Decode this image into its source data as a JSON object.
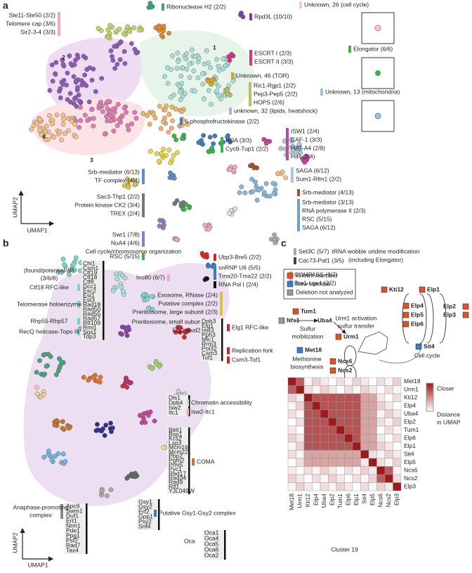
{
  "panel_a": {
    "label": "a",
    "x_axis": "UMAP1",
    "y_axis": "UMAP2",
    "clusters": [
      "1",
      "2",
      "3",
      "4"
    ],
    "groups": [
      {
        "lines": [
          "Ste11-Ste50 (2/2)",
          "Telomere cap (3/6)",
          "Sir2-3-4 (3/3)"
        ],
        "color": "#f2a7c3"
      },
      {
        "lines": [
          "Ribonuclease H2 (2/2)"
        ],
        "color": "#3aa383"
      },
      {
        "lines": [
          "Rpd3L (10/10)"
        ],
        "color": "#7b3fa8"
      },
      {
        "lines": [
          "Unknown, 26 (cell cycle)"
        ],
        "color": "#f6c6d6"
      },
      {
        "lines": [
          "ESCRT I (2/3)",
          "ESCRT II (3/3)"
        ],
        "color": "#d63384"
      },
      {
        "lines": [
          "Elongator (6/6)"
        ],
        "color": "#3cb44b"
      },
      {
        "lines": [
          "Unknown, 46 (TOR)"
        ],
        "color": "#d9a520"
      },
      {
        "lines": [
          "Ric1-Rgp1 (2/2)",
          "Pep3-Pep5 (2/2)",
          "HOPS (2/6)"
        ],
        "color": "#b9c25a"
      },
      {
        "lines": [
          "unknown, 32 (lipids, heatshock)"
        ],
        "color": "#b7a8dc"
      },
      {
        "lines": [
          "Unknown, 13 (mitochondria)"
        ],
        "color": "#9cc3dc"
      },
      {
        "lines": [
          "6-phosphofructokinase (2/2)"
        ],
        "color": "#3c7dbb"
      },
      {
        "lines": [
          "ISW1 (2/4)",
          "CAF-1 (3/3)",
          "HAT-A4 (2/8)",
          "HIR (2/4)"
        ],
        "color": "#c0479a"
      },
      {
        "lines": [
          "HDA (3/3)",
          "Cyc8-Tup1 (2/2)"
        ],
        "color": "#3cb44b"
      },
      {
        "lines": [
          "SAGA (6/12)",
          "Sum1-Rfm1 (2/2)"
        ],
        "color": "#a8c6e0"
      },
      {
        "lines": [
          "Srb-mediator (6/13)",
          "TF complex (4/4)"
        ],
        "color": "#5b8fc7"
      },
      {
        "lines": [
          "Sac3-Thp1 (2/2)",
          "Protein kinase CK2 (3/4)",
          "TREX (2/4)"
        ],
        "color": "#777777"
      },
      {
        "lines": [
          "Srb-mediator (4/13)"
        ],
        "color": "#a0522d"
      },
      {
        "lines": [
          "Srb-mediator (3/13)",
          "RNA  polymerase II (2/3)",
          "RSC (5/15)",
          "SAGA (6/12)"
        ],
        "color": "#6fa0d0"
      },
      {
        "lines": [
          "Swr1 (7/8)",
          "NuA4 (4/6)"
        ],
        "color": "#8e7cc3"
      },
      {
        "lines": [
          "RSC (5/15)"
        ],
        "color": "#3cb44b"
      },
      {
        "lines": [
          "Set3C (5/7)"
        ],
        "color": "#aaaaaa"
      },
      {
        "lines": [
          "Cdc73-Paf1 (3/5)"
        ],
        "color": "#444444"
      },
      {
        "lines": [
          "COMPASS (6/7)",
          "Bre1-Lge1 (2/2)"
        ],
        "color": "#f2a7c3"
      },
      {
        "lines": [
          "Ubp3-Bre5 (2/2)"
        ],
        "color": "#d62728"
      },
      {
        "lines": [
          "snRNP U6 (5/5)",
          "Tma20-Tma22 (2/2)"
        ],
        "color": "#3c7dbb"
      },
      {
        "lines": [
          "RNA Pol I (2/4)"
        ],
        "color": "#111111"
      },
      {
        "lines": [
          "Ino80 (6/7)"
        ],
        "color": "#f2a7c3"
      },
      {
        "lines": [
          "Exosome, RNase (2/4)",
          "Putative complex (2/2)",
          "Preribosome, large subunit (2/3)"
        ],
        "color": "#d9c24a"
      },
      {
        "lines": [
          "Preribosome, small subunit (2/2)",
          "Efg1-Bud22 (2/2)"
        ],
        "color": "#8e3fb0"
      }
    ]
  },
  "panel_b": {
    "label": "b",
    "title": "Cell cycle/chromosome organization",
    "x_axis": "UMAP1",
    "y_axis": "UMAP2",
    "blocks": [
      {
        "genes": [
          "Chl1",
          "Csm1",
          "Ctf19",
          "Ctf18",
          "Ctf8",
          "Dcc1",
          "Esc2",
          "Est1",
          "Est3",
          "Rad18",
          "Rad50",
          "Rad55",
          "Rad57",
          "Rtt109",
          "Rmi1",
          "Sgs1",
          "Top3"
        ],
        "labels": [
          {
            "lines": [
              "(found/potential/all)",
              "(3/6/8)"
            ],
            "color": "#ffffff"
          },
          {
            "lines": [
              "Ctf18 RFC-like"
            ],
            "color": "#7fd3c7"
          },
          {
            "lines": [
              "Telomerase holoenzyme"
            ],
            "color": "#7fd3c7"
          },
          {
            "lines": [
              "Rhp55-Rhp57"
            ],
            "color": "#7fd3c7"
          },
          {
            "lines": [
              "RecQ helicase-Topo III"
            ],
            "color": "#7fd3c7"
          }
        ]
      },
      {
        "genes": [
          "Dpb3",
          "Elg1",
          "Hst3",
          "Pph3",
          "Mlc1",
          "Rrm3",
          "Pol32",
          "Csm3",
          "Tof1"
        ],
        "labels": [
          {
            "lines": [
              "Elg1 RFC-like"
            ],
            "color": "#d62728"
          },
          {
            "lines": [
              "Replication fork"
            ],
            "color": "#d62728"
          },
          {
            "lines": [
              "Csm3-Tof1"
            ],
            "color": "#d62728"
          }
        ]
      },
      {
        "genes": [
          "Dls1",
          "Dpb4",
          "Isw2",
          "Itc1"
        ],
        "labels": [
          {
            "lines": [
              "Chromatin accessibility"
            ],
            "color": "#dddddd"
          },
          {
            "lines": [
              "Isw2-Itc1"
            ],
            "color": "#f2b8cf"
          }
        ]
      },
      {
        "genes": [
          "Bit61",
          "Bsp1",
          "Kcs2",
          "Lsp3",
          "Mcm16",
          "Mcm22",
          "Pbp2",
          "Pgm2",
          "Prm5",
          "Pyc1",
          "Rad17",
          "Rad34",
          "Rad9",
          "Rif1",
          "YJL049W"
        ],
        "labels": [
          {
            "lines": [
              "COMA"
            ],
            "color": "#c8742a"
          }
        ]
      },
      {
        "genes": [
          "Apc9",
          "Swm1",
          "Duf1",
          "Ert1",
          "Nrm1",
          "Pde1",
          "Ppg1",
          "Psf2",
          "Rad7",
          "Tax4"
        ],
        "labels": [
          {
            "lines": [
              "Anaphase-promoting",
              "complex"
            ],
            "color": "#888888"
          }
        ]
      },
      {
        "genes": [
          "Gsy1",
          "Gsy2",
          "Erf2",
          "Gpp1",
          "Psy2",
          "Snf4"
        ],
        "labels": [
          {
            "lines": [
              "Putative Gsy1-Gsy2 complex"
            ],
            "color": "#3c7dbb"
          }
        ]
      },
      {
        "genes": [
          "Oca1",
          "Oca4",
          "Oca5",
          "Oca6",
          "Oca2"
        ],
        "labels": [
          {
            "lines": [
              "Oca"
            ],
            "color": "#ffffff"
          }
        ]
      }
    ]
  },
  "panel_c": {
    "label": "c",
    "title": "tRNA wobble uridine modification",
    "subtitle": "(including Elongator)",
    "legend": [
      {
        "text": "Known member",
        "color": "#e0522a"
      },
      {
        "text": "New member",
        "color": "#3a7ec1"
      },
      {
        "text": "Deletion not analyzed",
        "color": "#999999"
      }
    ],
    "diagram": {
      "nodes": [
        {
          "text": "Kti12",
          "color": "#e0522a"
        },
        {
          "text": "Elp1",
          "color": "#e0522a"
        },
        {
          "text": "Elp4",
          "color": "#e0522a"
        },
        {
          "text": "Elp5",
          "color": "#e0522a"
        },
        {
          "text": "Elp6",
          "color": "#e0522a"
        },
        {
          "text": "Elp2",
          "color": "#e0522a"
        },
        {
          "text": "Elp3",
          "color": "#e0522a"
        },
        {
          "text": "Tum1",
          "color": "#e0522a"
        },
        {
          "text": "Nfs1",
          "color": "#999999"
        },
        {
          "text": "Uba4",
          "color": "#e0522a"
        },
        {
          "text": "Urm1",
          "color": "#e0522a"
        },
        {
          "text": "Met18",
          "color": "#3a7ec1"
        },
        {
          "text": "Ncs6",
          "color": "#e0522a"
        },
        {
          "text": "Ncs2",
          "color": "#e0522a"
        },
        {
          "text": "Sit4",
          "color": "#3a7ec1"
        }
      ],
      "notes": [
        [
          "Urm1 activation",
          "sulfur transfer"
        ],
        [
          "Sulfur",
          "mobilization"
        ],
        [
          "Methionine",
          "biosynthesis"
        ],
        [
          "Cell cycle"
        ]
      ]
    },
    "heatmap": {
      "rows": [
        {
          "text": "Met18",
          "color": "#3a7ec1"
        },
        {
          "text": "Urm1",
          "color": "#222222"
        },
        {
          "text": "Kti12",
          "color": "#222222"
        },
        {
          "text": "Elp4",
          "color": "#222222"
        },
        {
          "text": "Uba4",
          "color": "#222222"
        },
        {
          "text": "Elp2",
          "color": "#222222"
        },
        {
          "text": "Tum1",
          "color": "#222222"
        },
        {
          "text": "Elp6",
          "color": "#222222"
        },
        {
          "text": "Elp1",
          "color": "#222222"
        },
        {
          "text": "Sit4",
          "color": "#3a7ec1"
        },
        {
          "text": "Elp5",
          "color": "#222222"
        },
        {
          "text": "Ncs6",
          "color": "#222222"
        },
        {
          "text": "Ncs2",
          "color": "#222222"
        },
        {
          "text": "Elp3",
          "color": "#222222"
        }
      ],
      "columns": [
        "Met18",
        "Urm1",
        "Kti12",
        "Elp4",
        "Uba4",
        "Elp2",
        "Tum1",
        "Elp6",
        "Elp1",
        "Sit4",
        "Elp5",
        "Ncs6",
        "Ncs2",
        "Elp3"
      ],
      "xlabel": "Cluster 19",
      "colorbar": [
        "Closer",
        "Distance",
        "in UMAP"
      ]
    }
  }
}
